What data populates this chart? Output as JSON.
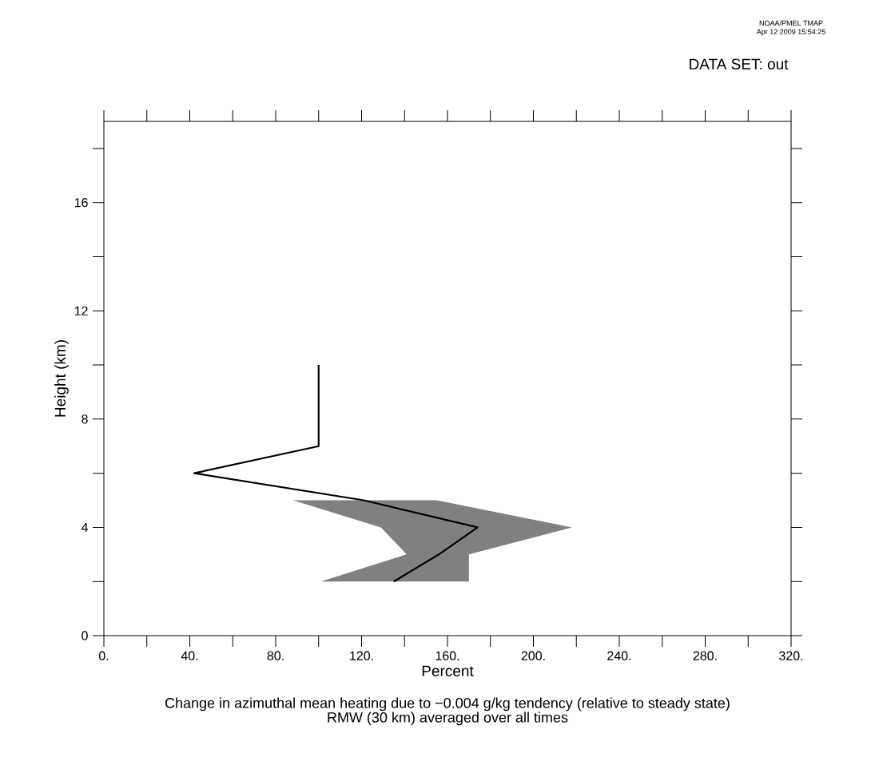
{
  "chart_data": {
    "type": "line",
    "orientation": "horizontal",
    "title": "Change in azimuthal mean heating due to −0.004 g/kg tendency (relative to steady state)",
    "subtitle": "RMW (30 km) averaged over all times",
    "xlabel": "Percent",
    "ylabel": "Height (km)",
    "annotations": [
      "NOAA/PMEL TMAP",
      "Apr 12 2009 15:54:25",
      "DATA SET: out"
    ],
    "series": [
      {
        "color": "#000000",
        "x": [
          10,
          7,
          6,
          5,
          4,
          3,
          2
        ],
        "values": [
          100,
          100,
          42,
          121,
          174,
          156,
          135
        ],
        "lower": [
          null,
          null,
          null,
          88,
          129,
          141,
          101
        ],
        "upper": [
          null,
          null,
          null,
          155,
          218,
          170,
          170
        ]
      }
    ],
    "xlim": [
      0,
      320
    ],
    "xticks": [
      {
        "value": 0,
        "label": "0."
      },
      {
        "value": 20,
        "label": null
      },
      {
        "value": 40,
        "label": "40."
      },
      {
        "value": 60,
        "label": null
      },
      {
        "value": 80,
        "label": "80."
      },
      {
        "value": 100,
        "label": null
      },
      {
        "value": 120,
        "label": "120."
      },
      {
        "value": 140,
        "label": null
      },
      {
        "value": 160,
        "label": "160."
      },
      {
        "value": 180,
        "label": null
      },
      {
        "value": 200,
        "label": "200."
      },
      {
        "value": 220,
        "label": null
      },
      {
        "value": 240,
        "label": "240."
      },
      {
        "value": 260,
        "label": null
      },
      {
        "value": 280,
        "label": "280."
      },
      {
        "value": 300,
        "label": null
      },
      {
        "value": 320,
        "label": "320."
      }
    ],
    "ylim": [
      0,
      19
    ],
    "yticks": [
      0,
      {
        "value": 2,
        "label": null
      },
      4,
      {
        "value": 6,
        "label": null
      },
      8,
      {
        "value": 10,
        "label": null
      },
      12,
      {
        "value": 14,
        "label": null
      },
      16,
      {
        "value": 18,
        "label": null
      }
    ],
    "line_style": "solid",
    "marker": "none",
    "grid": false
  }
}
